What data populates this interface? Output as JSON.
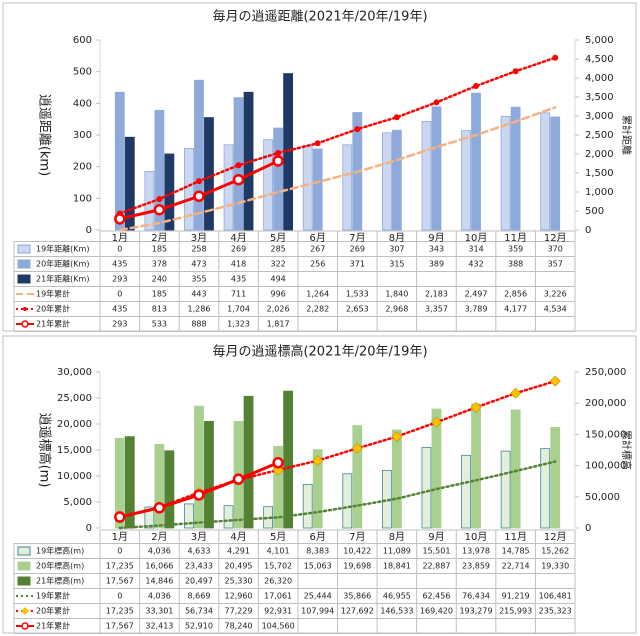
{
  "chart_data": [
    {
      "type": "combo",
      "title": "毎月の逍遥距離(2021年/20年/19年)",
      "y_label": "逍遥距離(km)",
      "y2_label": "累計距離",
      "categories": [
        "1月",
        "2月",
        "3月",
        "4月",
        "5月",
        "6月",
        "7月",
        "8月",
        "9月",
        "10月",
        "11月",
        "12月"
      ],
      "ylim": [
        0,
        600
      ],
      "yticks": [
        0,
        100,
        200,
        300,
        400,
        500,
        600
      ],
      "y2lim": [
        0,
        5000
      ],
      "y2ticks": [
        0,
        500,
        {
          "value": 1000,
          "label": "1,000"
        },
        {
          "value": 1500,
          "label": "1,500"
        },
        {
          "value": 2000,
          "label": "2,000"
        },
        {
          "value": 2500,
          "label": "2,500"
        },
        {
          "value": 3000,
          "label": "3,000"
        },
        {
          "value": 3500,
          "label": "3,500"
        },
        {
          "value": 4000,
          "label": "4,000"
        },
        {
          "value": 4500,
          "label": "4,500"
        },
        {
          "value": 5000,
          "label": "5,000"
        }
      ],
      "grid": false,
      "series": [
        {
          "name": "19年距離(Km)",
          "type": "bar",
          "color": "#c9d7f0",
          "edge_color": "#8fa8d8",
          "values": [
            0,
            185,
            258,
            269,
            285,
            267,
            269,
            307,
            343,
            314,
            359,
            370
          ]
        },
        {
          "name": "20年距離(Km)",
          "type": "bar",
          "color": "#8eaadb",
          "edge_color": "#8eaadb",
          "values": [
            435,
            378,
            473,
            418,
            322,
            256,
            371,
            315,
            389,
            432,
            388,
            357
          ]
        },
        {
          "name": "21年距離(Km)",
          "type": "bar",
          "color": "#1f3864",
          "edge_color": "#1f3864",
          "values": [
            293,
            240,
            355,
            435,
            494,
            null,
            null,
            null,
            null,
            null,
            null,
            null
          ]
        },
        {
          "name": "19年累計",
          "type": "line",
          "axis": "y2",
          "color": "#f4b183",
          "dash": "dashed",
          "values": [
            0,
            185,
            443,
            711,
            996,
            1264,
            1533,
            1840,
            2183,
            2497,
            2856,
            3226
          ],
          "value_labels": [
            "0",
            "185",
            "443",
            "711",
            "996",
            "1,264",
            "1,533",
            "1,840",
            "2,183",
            "2,497",
            "2,856",
            "3,226"
          ]
        },
        {
          "name": "20年累計",
          "type": "line",
          "axis": "y2",
          "color": "#ff0000",
          "dash": "dotted",
          "marker": "dot",
          "marker_color": "#ff0000",
          "values": [
            435,
            813,
            1286,
            1704,
            2026,
            2282,
            2653,
            2968,
            3357,
            3789,
            4177,
            4534
          ],
          "value_labels": [
            "435",
            "813",
            "1,286",
            "1,704",
            "2,026",
            "2,282",
            "2,653",
            "2,968",
            "3,357",
            "3,789",
            "4,177",
            "4,534"
          ]
        },
        {
          "name": "21年累計",
          "type": "line",
          "axis": "y2",
          "color": "#ff0000",
          "dash": "solid",
          "marker": "circle",
          "marker_color": "#ffffff",
          "values": [
            293,
            533,
            888,
            1323,
            1817,
            null,
            null,
            null,
            null,
            null,
            null,
            null
          ],
          "value_labels": [
            "293",
            "533",
            "888",
            "1,323",
            "1,817",
            null,
            null,
            null,
            null,
            null,
            null,
            null
          ]
        }
      ]
    },
    {
      "type": "combo",
      "title": "毎月の逍遥標高(2021年/20年/19年)",
      "y_label": "逍遥標高(m)",
      "y2_label": "累計標高",
      "categories": [
        "1月",
        "2月",
        "3月",
        "4月",
        "5月",
        "6月",
        "7月",
        "8月",
        "9月",
        "10月",
        "11月",
        "12月"
      ],
      "ylim": [
        0,
        30000
      ],
      "yticks": [
        0,
        {
          "value": 5000,
          "label": "5,000"
        },
        {
          "value": 10000,
          "label": "10,000"
        },
        {
          "value": 15000,
          "label": "15,000"
        },
        {
          "value": 20000,
          "label": "20,000"
        },
        {
          "value": 25000,
          "label": "25,000"
        },
        {
          "value": 30000,
          "label": "30,000"
        }
      ],
      "y2lim": [
        0,
        250000
      ],
      "y2ticks": [
        0,
        {
          "value": 50000,
          "label": "50,000"
        },
        {
          "value": 100000,
          "label": "100,000"
        },
        {
          "value": 150000,
          "label": "150,000"
        },
        {
          "value": 200000,
          "label": "200,000"
        },
        {
          "value": 250000,
          "label": "250,000"
        }
      ],
      "grid": false,
      "series": [
        {
          "name": "19年標高(m)",
          "type": "bar",
          "color": "#e2efda",
          "edge_color": "#41879a",
          "values": [
            0,
            4036,
            4633,
            4291,
            4101,
            8383,
            10422,
            11089,
            15501,
            13978,
            14785,
            15262
          ],
          "value_labels": [
            "0",
            "4,036",
            "4,633",
            "4,291",
            "4,101",
            "8,383",
            "10,422",
            "11,089",
            "15,501",
            "13,978",
            "14,785",
            "15,262"
          ]
        },
        {
          "name": "20年標高(m)",
          "type": "bar",
          "color": "#a9d08e",
          "edge_color": "#a9d08e",
          "values": [
            17235,
            16066,
            23433,
            20495,
            15702,
            15063,
            19698,
            18841,
            22887,
            23859,
            22714,
            19330
          ],
          "value_labels": [
            "17,235",
            "16,066",
            "23,433",
            "20,495",
            "15,702",
            "15,063",
            "19,698",
            "18,841",
            "22,887",
            "23,859",
            "22,714",
            "19,330"
          ]
        },
        {
          "name": "21年標高(m)",
          "type": "bar",
          "color": "#548235",
          "edge_color": "#548235",
          "values": [
            17567,
            14846,
            20497,
            25330,
            26320,
            null,
            null,
            null,
            null,
            null,
            null,
            null
          ],
          "value_labels": [
            "17,567",
            "14,846",
            "20,497",
            "25,330",
            "26,320",
            null,
            null,
            null,
            null,
            null,
            null,
            null
          ]
        },
        {
          "name": "19年累計",
          "type": "line",
          "axis": "y2",
          "color": "#548235",
          "dash": "dotted",
          "values": [
            0,
            4036,
            8669,
            12960,
            17061,
            25444,
            35866,
            46955,
            62456,
            76434,
            91219,
            106481
          ],
          "value_labels": [
            "0",
            "4,036",
            "8,669",
            "12,960",
            "17,061",
            "25,444",
            "35,866",
            "46,955",
            "62,456",
            "76,434",
            "91,219",
            "106,481"
          ]
        },
        {
          "name": "20年累計",
          "type": "line",
          "axis": "y2",
          "color": "#ff0000",
          "dash": "dotted",
          "marker": "diamond",
          "marker_color": "#ffc000",
          "values": [
            17235,
            33301,
            56734,
            77229,
            92931,
            107994,
            127692,
            146533,
            169420,
            193279,
            215993,
            235323
          ],
          "value_labels": [
            "17,235",
            "33,301",
            "56,734",
            "77,229",
            "92,931",
            "107,994",
            "127,692",
            "146,533",
            "169,420",
            "193,279",
            "215,993",
            "235,323"
          ]
        },
        {
          "name": "21年累計",
          "type": "line",
          "axis": "y2",
          "color": "#ff0000",
          "dash": "solid",
          "marker": "circle",
          "marker_color": "#ffffff",
          "values": [
            17567,
            32413,
            52910,
            78240,
            104560,
            null,
            null,
            null,
            null,
            null,
            null,
            null
          ],
          "value_labels": [
            "17,567",
            "32,413",
            "52,910",
            "78,240",
            "104,560",
            null,
            null,
            null,
            null,
            null,
            null,
            null
          ]
        }
      ]
    }
  ]
}
